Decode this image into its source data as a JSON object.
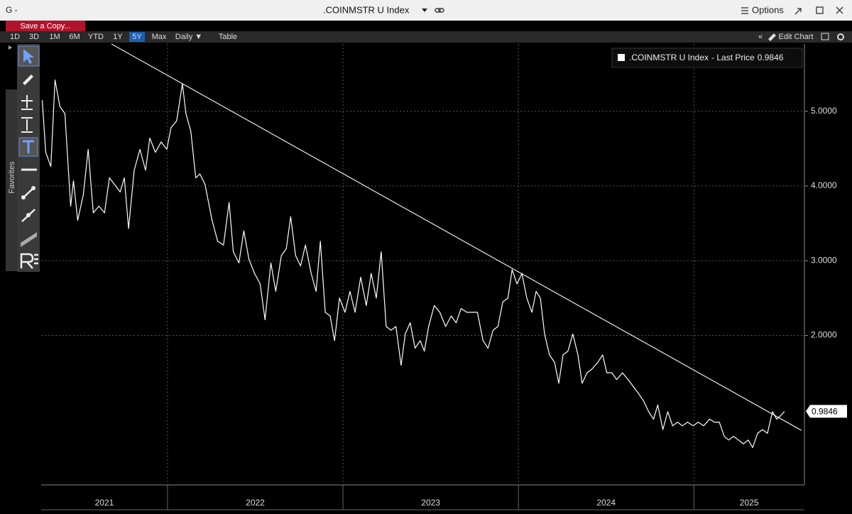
{
  "window": {
    "app": "G -",
    "title": ".COINMSTR U Index",
    "options": "Options"
  },
  "toolbar": {
    "save": "Save a Copy...",
    "ranges": [
      "1D",
      "3D",
      "1M",
      "6M",
      "YTD",
      "1Y",
      "5Y",
      "Max"
    ],
    "active_range": "5Y",
    "frequency": "Daily ▼",
    "table": "Table",
    "edit": "Edit Chart"
  },
  "side_panel": "Favorites",
  "chart_data": {
    "type": "line",
    "series": [
      {
        "name": ".COINMSTR U Index",
        "color": "#ffffff",
        "values": [
          5.15,
          4.45,
          4.26,
          5.42,
          5.06,
          4.97,
          3.73,
          4.07,
          3.54,
          3.88,
          4.49,
          3.64,
          3.73,
          3.64,
          4.11,
          4.02,
          3.92,
          4.11,
          3.43,
          4.21,
          4.49,
          4.21,
          4.64,
          4.45,
          4.59,
          4.49,
          4.78,
          4.87,
          5.37,
          4.97,
          4.73,
          4.11,
          4.16,
          4.02,
          3.54,
          3.26,
          3.21,
          3.78,
          3.12,
          2.97,
          3.4,
          3.02,
          2.83,
          2.69,
          2.21,
          2.97,
          2.59,
          3.07,
          3.16,
          3.59,
          3.07,
          2.93,
          3.21,
          2.83,
          2.59,
          3.26,
          2.31,
          2.26,
          1.93,
          2.5,
          2.31,
          2.59,
          2.31,
          2.78,
          2.4,
          2.83,
          2.5,
          3.12,
          2.12,
          2.07,
          2.12,
          1.6,
          2.02,
          2.17,
          1.83,
          1.93,
          1.79,
          2.12,
          2.4,
          2.31,
          2.12,
          2.26,
          2.17,
          2.36,
          2.31,
          2.31,
          2.31,
          1.93,
          1.83,
          2.07,
          2.12,
          2.45,
          2.5,
          2.88,
          2.69,
          2.83,
          2.5,
          2.31,
          2.59,
          2.5,
          2.02,
          1.74,
          1.64,
          1.36,
          1.74,
          1.79,
          2.02,
          1.74,
          1.36,
          1.5,
          1.55,
          1.64,
          1.74,
          1.5,
          1.5,
          1.41,
          1.5,
          1.41,
          1.31,
          1.22,
          1.12,
          0.98,
          0.88,
          1.07,
          0.74,
          0.98,
          0.79,
          0.84,
          0.79,
          0.84,
          0.79,
          0.84,
          0.79,
          0.88,
          0.84,
          0.84,
          0.65,
          0.6,
          0.65,
          0.6,
          0.55,
          0.6,
          0.5,
          0.69,
          0.74,
          0.69,
          0.98,
          0.88,
          0.93,
          0.9846
        ]
      }
    ],
    "x": [
      2021.286,
      2021.306,
      2021.335,
      2021.359,
      2021.387,
      2021.415,
      2021.448,
      2021.464,
      2021.488,
      2021.52,
      2021.548,
      2021.577,
      2021.609,
      2021.641,
      2021.669,
      2021.698,
      2021.73,
      2021.754,
      2021.778,
      2021.81,
      2021.843,
      2021.875,
      2021.899,
      2021.931,
      2021.964,
      2021.996,
      2022.02,
      2022.052,
      2022.085,
      2022.105,
      2022.133,
      2022.161,
      2022.185,
      2022.214,
      2022.254,
      2022.286,
      2022.319,
      2022.351,
      2022.375,
      2022.407,
      2022.435,
      2022.464,
      2022.496,
      2022.528,
      2022.556,
      2022.589,
      2022.617,
      2022.649,
      2022.677,
      2022.702,
      2022.73,
      2022.758,
      2022.786,
      2022.819,
      2022.847,
      2022.871,
      2022.899,
      2022.927,
      2022.952,
      2022.98,
      2023.012,
      2023.04,
      2023.069,
      2023.101,
      2023.133,
      2023.161,
      2023.19,
      2023.218,
      2023.246,
      2023.274,
      2023.302,
      2023.331,
      2023.355,
      2023.383,
      2023.411,
      2023.44,
      2023.464,
      2023.488,
      2023.52,
      2023.552,
      2023.585,
      2023.617,
      2023.645,
      2023.673,
      2023.706,
      2023.738,
      2023.766,
      2023.798,
      2023.827,
      2023.855,
      2023.883,
      2023.911,
      2023.94,
      2023.964,
      2023.992,
      2024.02,
      2024.048,
      2024.077,
      2024.101,
      2024.125,
      2024.149,
      2024.177,
      2024.206,
      2024.23,
      2024.254,
      2024.282,
      2024.31,
      2024.339,
      2024.363,
      2024.391,
      2024.419,
      2024.452,
      2024.48,
      2024.504,
      2024.532,
      2024.56,
      2024.593,
      2024.625,
      2024.657,
      2024.685,
      2024.714,
      2024.742,
      2024.77,
      2024.794,
      2024.823,
      2024.851,
      2024.879,
      2024.907,
      2024.935,
      2024.964,
      2024.996,
      2025.024,
      2025.056,
      2025.089,
      2025.117,
      2025.145,
      2025.173,
      2025.198,
      2025.226,
      2025.254,
      2025.282,
      2025.31,
      2025.335,
      2025.363,
      2025.391,
      2025.419,
      2025.448,
      2025.472,
      2025.496,
      2025.516
    ],
    "xlim": [
      2021.28,
      2025.63
    ],
    "xticks": [
      2021,
      2022,
      2023,
      2024,
      2025
    ],
    "ylim": [
      0,
      5.9
    ],
    "yticks": [
      {
        "value": 2,
        "label": "2.0000"
      },
      {
        "value": 3,
        "label": "3.0000"
      },
      {
        "value": 4,
        "label": "4.0000"
      },
      {
        "value": 5,
        "label": "5.0000"
      }
    ],
    "grid": true,
    "legend_label": "- Last Price",
    "trend_line": {
      "x": [
        2021.681,
        2025.613
      ],
      "values": [
        5.9,
        0.73
      ],
      "color": "#e8e8e8"
    }
  }
}
